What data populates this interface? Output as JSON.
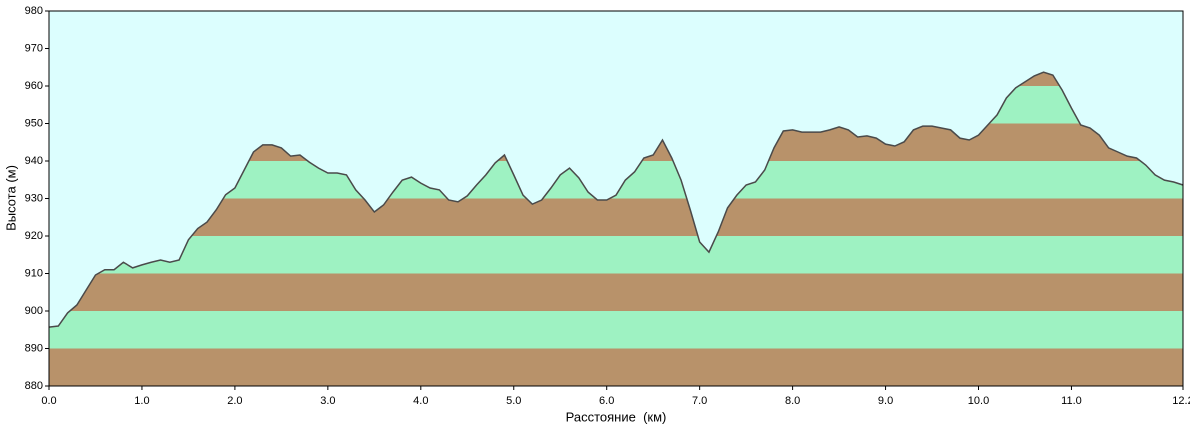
{
  "chart_data": {
    "type": "area",
    "x_label": "Расстояние  (км)",
    "y_label": "Высота (м)",
    "background_color": "#dcfefe",
    "line_color": "#4a4a4a",
    "band_colors": [
      "#b8926a",
      "#9ef2c2"
    ],
    "xlim": [
      0,
      12.2
    ],
    "ylim": [
      880,
      980
    ],
    "xticks": [
      {
        "value": 0,
        "label": "0.0"
      },
      {
        "value": 1,
        "label": "1.0"
      },
      {
        "value": 2,
        "label": "2.0"
      },
      {
        "value": 3,
        "label": "3.0"
      },
      {
        "value": 4,
        "label": "4.0"
      },
      {
        "value": 5,
        "label": "5.0"
      },
      {
        "value": 6,
        "label": "6.0"
      },
      {
        "value": 7,
        "label": "7.0"
      },
      {
        "value": 8,
        "label": "8.0"
      },
      {
        "value": 9,
        "label": "9.0"
      },
      {
        "value": 10,
        "label": "10.0"
      },
      {
        "value": 11,
        "label": "11.0"
      },
      12.2
    ],
    "yticks": [
      880,
      890,
      900,
      910,
      920,
      930,
      940,
      950,
      960,
      970,
      980
    ],
    "x": [
      0,
      0.1,
      0.2,
      0.3,
      0.4,
      0.5,
      0.6,
      0.7,
      0.8,
      0.9,
      1,
      1.1,
      1.2,
      1.3,
      1.4,
      1.5,
      1.6,
      1.7,
      1.8,
      1.9,
      2,
      2.1,
      2.2,
      2.3,
      2.4,
      2.5,
      2.6,
      2.7,
      2.8,
      2.9,
      3,
      3.1,
      3.2,
      3.3,
      3.4,
      3.5,
      3.6,
      3.7,
      3.8,
      3.9,
      4,
      4.1,
      4.2,
      4.3,
      4.4,
      4.5,
      4.6,
      4.7,
      4.8,
      4.9,
      5,
      5.1,
      5.2,
      5.3,
      5.4,
      5.5,
      5.6,
      5.7,
      5.8,
      5.9,
      6,
      6.1,
      6.2,
      6.3,
      6.4,
      6.5,
      6.6,
      6.7,
      6.8,
      6.9,
      7,
      7.1,
      7.2,
      7.3,
      7.4,
      7.5,
      7.6,
      7.7,
      7.8,
      7.9,
      8,
      8.1,
      8.2,
      8.3,
      8.4,
      8.5,
      8.6,
      8.7,
      8.8,
      8.9,
      9,
      9.1,
      9.2,
      9.3,
      9.4,
      9.5,
      9.6,
      9.7,
      9.8,
      9.9,
      10,
      10.1,
      10.2,
      10.3,
      10.4,
      10.5,
      10.6,
      10.7,
      10.8,
      10.9,
      11,
      11.1,
      11.2,
      11.3,
      11.4,
      11.5,
      11.6,
      11.7,
      11.8,
      11.9,
      12,
      12.1,
      12.2
    ],
    "values": [
      895.7,
      896,
      899.5,
      901.6,
      905.6,
      909.6,
      911,
      911,
      913,
      911.5,
      912.3,
      913,
      913.6,
      913,
      913.6,
      919,
      922,
      923.7,
      927,
      931,
      932.8,
      937.6,
      942.4,
      944.3,
      944.3,
      943.5,
      941.3,
      941.6,
      939.7,
      938.1,
      936.8,
      936.8,
      936.3,
      932.3,
      929.6,
      926.4,
      928.3,
      931.7,
      934.9,
      935.7,
      934.1,
      932.8,
      932.3,
      929.6,
      929.1,
      930.7,
      933.6,
      936.3,
      939.5,
      941.6,
      936.3,
      930.9,
      928.5,
      929.6,
      932.8,
      936.3,
      938.1,
      935.5,
      931.7,
      929.6,
      929.6,
      930.9,
      934.9,
      937.1,
      940.8,
      941.6,
      945.6,
      940.8,
      934.9,
      926.9,
      918.4,
      915.7,
      921.1,
      927.5,
      930.9,
      933.6,
      934.4,
      937.6,
      943.5,
      948,
      948.3,
      947.7,
      947.7,
      947.7,
      948.3,
      949.1,
      948.3,
      946.4,
      946.7,
      946.1,
      944.5,
      944,
      945.1,
      948.3,
      949.3,
      949.3,
      948.8,
      948.3,
      946.1,
      945.6,
      946.9,
      949.6,
      952.3,
      956.8,
      959.5,
      961.1,
      962.7,
      963.7,
      962.9,
      958.9,
      954.1,
      949.6,
      948.8,
      946.9,
      943.5,
      942.4,
      941.3,
      940.8,
      938.9,
      936.3,
      934.9,
      934.4,
      933.6
    ]
  }
}
